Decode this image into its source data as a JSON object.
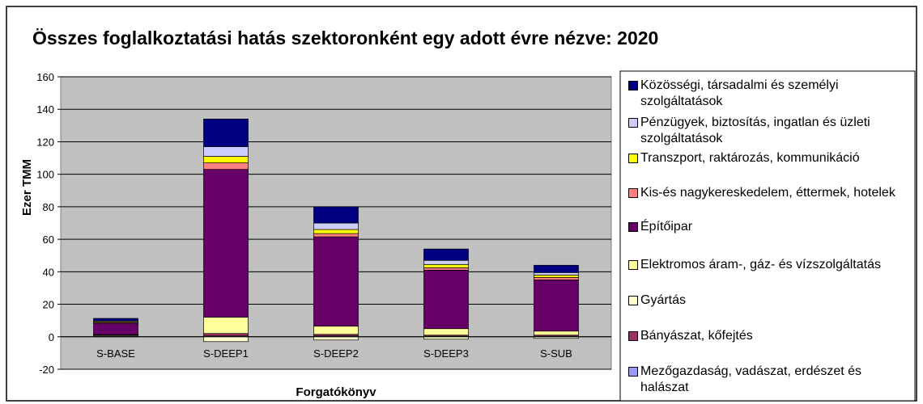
{
  "chart_data": {
    "type": "bar",
    "stacked": true,
    "title": "Összes foglalkoztatási hatás szektoronként egy adott évre nézve: 2020",
    "x_label": "Forgatókönyv",
    "y_label": "Ezer TMM",
    "categories": [
      "S-BASE",
      "S-DEEP1",
      "S-DEEP2",
      "S-DEEP3",
      "S-SUB"
    ],
    "ylim": [
      -20,
      160
    ],
    "yticks": [
      -20,
      0,
      20,
      40,
      60,
      80,
      100,
      120,
      140,
      160
    ],
    "grid": true,
    "legend": "right",
    "series": [
      {
        "name": "Közösségi, társadalmi és személyi szolgáltatások",
        "color": "#000080",
        "values": [
          1.5,
          17,
          10,
          7,
          4.5
        ]
      },
      {
        "name": "Pénzügyek, biztosítás, ingatlan és üzleti szolgáltatások",
        "color": "#CCCCFF",
        "values": [
          0.5,
          6,
          4,
          2.5,
          1.5
        ]
      },
      {
        "name": "Transzport, raktározás, kommunikáció",
        "color": "#FFFF00",
        "values": [
          0.5,
          4,
          2.5,
          2,
          1.5
        ]
      },
      {
        "name": "Kis-és nagykereskedelem, éttermek, hotelek",
        "color": "#FF8080",
        "values": [
          0.5,
          4,
          2,
          1.5,
          1.5
        ]
      },
      {
        "name": "Építőipar",
        "color": "#660066",
        "values": [
          7,
          91,
          55,
          36,
          31.5
        ]
      },
      {
        "name": "Elektromos áram-, gáz- és vízszolgáltatás",
        "color": "#FFFF99",
        "values": [
          0.3,
          10,
          5,
          4,
          2.5
        ]
      },
      {
        "name": "Gyártás",
        "color": "#FFFFCC",
        "values": [
          0.5,
          -3,
          -2,
          -1.5,
          -1
        ]
      },
      {
        "name": "Bányászat, kőfejtés",
        "color": "#993366",
        "values": [
          0.5,
          1.5,
          1,
          0.7,
          0.7
        ]
      },
      {
        "name": "Mezőgazdaság, vadászat, erdészet és halászat",
        "color": "#9999FF",
        "values": [
          0,
          0.5,
          0.5,
          0.3,
          0.3
        ]
      }
    ]
  }
}
